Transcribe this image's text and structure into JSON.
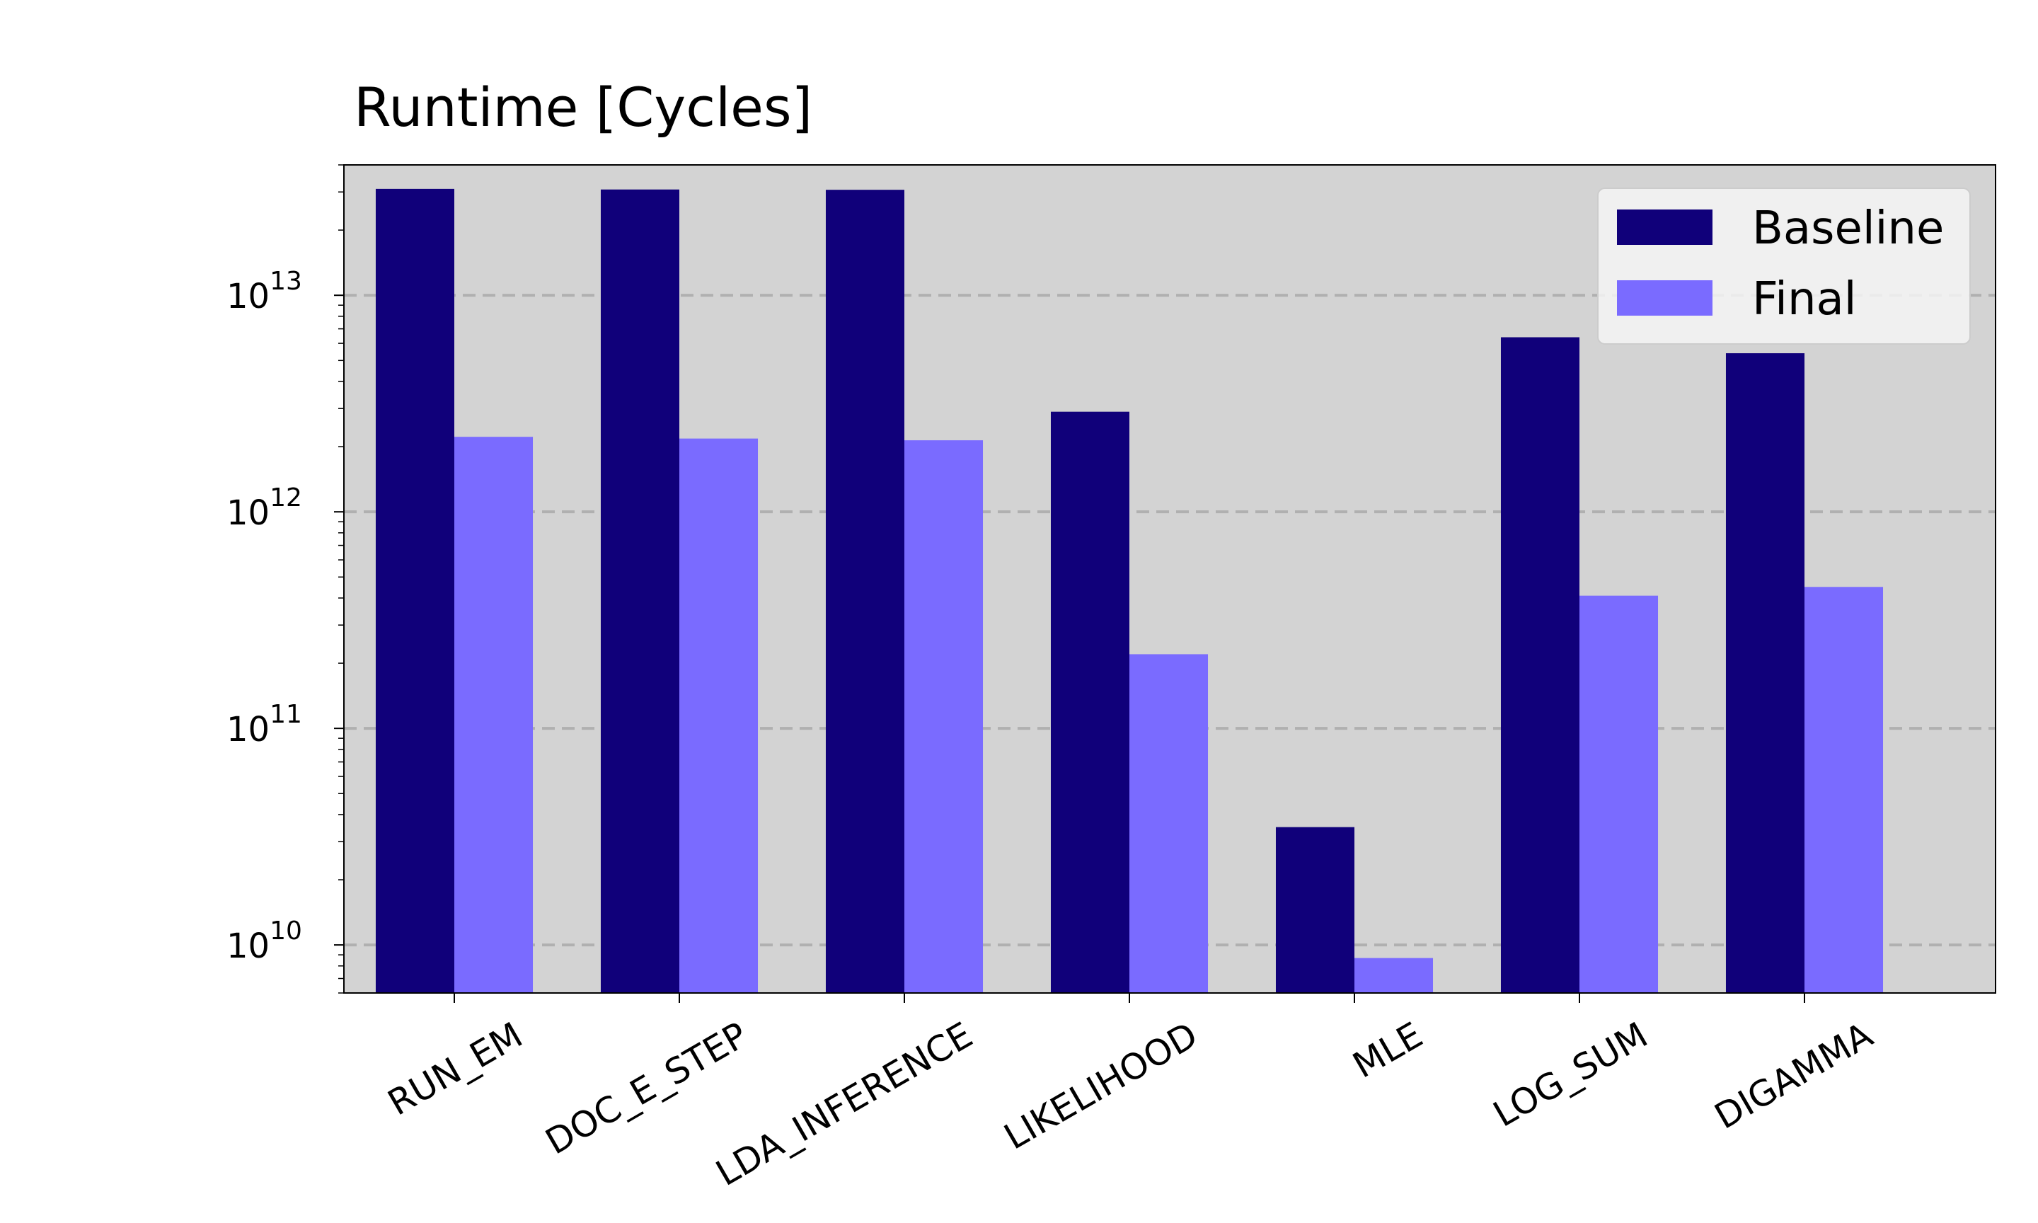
{
  "chart_data": {
    "type": "bar",
    "title": "Runtime [Cycles]",
    "xlabel": "",
    "ylabel": "",
    "yscale": "log",
    "ylim": [
      6000000000,
      40000000000000
    ],
    "y_ticks": [
      {
        "value": 10000000000,
        "base": "10",
        "exp": "10"
      },
      {
        "value": 100000000000,
        "base": "10",
        "exp": "11"
      },
      {
        "value": 1000000000000,
        "base": "10",
        "exp": "12"
      },
      {
        "value": 10000000000000,
        "base": "10",
        "exp": "13"
      }
    ],
    "grid": "horizontal dashed at major ticks",
    "legend_position": "top-right",
    "background": "#d3d3d3",
    "categories": [
      "RUN_EM",
      "DOC_E_STEP",
      "LDA_INFERENCE",
      "LIKELIHOOD",
      "MLE",
      "LOG_SUM",
      "DIGAMMA"
    ],
    "series": [
      {
        "name": "Baseline",
        "color": "#10007a",
        "values": [
          31000000000000,
          30800000000000,
          30700000000000,
          2900000000000,
          35000000000,
          6400000000000,
          5400000000000
        ]
      },
      {
        "name": "Final",
        "color": "#7a6bff",
        "values": [
          2220000000000,
          2180000000000,
          2140000000000,
          220000000000,
          8700000000,
          410000000000,
          450000000000
        ]
      }
    ]
  }
}
